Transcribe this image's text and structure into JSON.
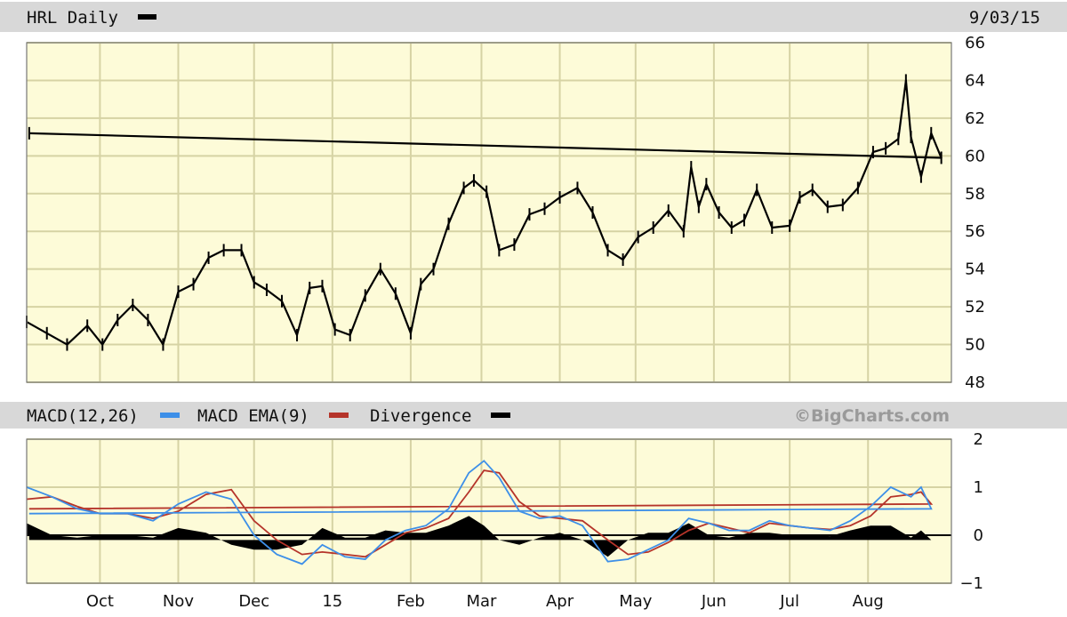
{
  "header": {
    "title": "HRL Daily",
    "date": "9/03/15"
  },
  "macd_header": {
    "macd_label": "MACD(12,26)",
    "ema_label": "MACD EMA(9)",
    "div_label": "Divergence",
    "brand": "©BigCharts.com"
  },
  "colors": {
    "header_bg": "#d8d8d8",
    "plot_bg": "#fdfbd8",
    "grid": "#d6d3a4",
    "price": "#000000",
    "macd": "#3d8fe8",
    "ema": "#b5342a",
    "divergence": "#000000"
  },
  "chart_data": [
    {
      "type": "line",
      "name": "price",
      "title": "HRL Daily",
      "ylim": [
        48,
        66
      ],
      "yticks": [
        "66",
        "64",
        "62",
        "60",
        "58",
        "56",
        "54",
        "52",
        "50",
        "48"
      ],
      "xticks": [
        "Oct",
        "Nov",
        "Dec",
        "15",
        "Feb",
        "Mar",
        "Apr",
        "May",
        "Jun",
        "Jul",
        "Aug"
      ],
      "grid": true,
      "x": [
        "Sep 2",
        "Sep 10",
        "Sep 18",
        "Sep 26",
        "Oct 2",
        "Oct 8",
        "Oct 14",
        "Oct 20",
        "Oct 26",
        "Nov 1",
        "Nov 7",
        "Nov 13",
        "Nov 19",
        "Nov 26",
        "Dec 1",
        "Dec 6",
        "Dec 12",
        "Dec 18",
        "Dec 23",
        "Dec 28",
        "Jan 2",
        "Jan 8",
        "Jan 14",
        "Jan 20",
        "Jan 26",
        "Feb 1",
        "Feb 5",
        "Feb 10",
        "Feb 16",
        "Feb 22",
        "Feb 26",
        "Mar 3",
        "Mar 8",
        "Mar 14",
        "Mar 20",
        "Mar 26",
        "Apr 1",
        "Apr 8",
        "Apr 14",
        "Apr 20",
        "Apr 26",
        "May 2",
        "May 8",
        "May 14",
        "May 20",
        "May 23",
        "May 26",
        "May 29",
        "Jun 3",
        "Jun 8",
        "Jun 13",
        "Jun 18",
        "Jun 24",
        "Jul 1",
        "Jul 5",
        "Jul 10",
        "Jul 16",
        "Jul 22",
        "Jul 28",
        "Aug 3",
        "Aug 8",
        "Aug 13",
        "Aug 16",
        "Aug 18",
        "Aug 22",
        "Aug 26",
        "Aug 30",
        "Sep 3"
      ],
      "values": [
        51.2,
        50.6,
        50.0,
        51.0,
        50.0,
        51.3,
        52.1,
        51.3,
        50.0,
        52.8,
        53.2,
        54.6,
        55.0,
        55.0,
        53.3,
        52.9,
        52.3,
        50.5,
        53.0,
        53.1,
        50.8,
        50.5,
        52.6,
        54.0,
        52.7,
        50.6,
        53.2,
        54.0,
        56.4,
        58.3,
        58.7,
        58.1,
        55.0,
        55.3,
        56.9,
        57.2,
        57.8,
        58.3,
        57.0,
        55.0,
        54.5,
        55.7,
        56.2,
        57.1,
        56.0,
        59.4,
        57.3,
        58.5,
        57.0,
        56.2,
        56.6,
        58.2,
        56.2,
        56.3,
        57.8,
        58.2,
        57.3,
        57.4,
        58.3,
        60.2,
        60.4,
        60.9,
        64.0,
        61.0,
        58.9,
        61.2,
        59.9,
        61.2
      ]
    },
    {
      "type": "line",
      "name": "MACD",
      "ylim": [
        -1,
        2
      ],
      "yticks": [
        "2",
        "1",
        "0",
        "−1"
      ],
      "xticks": [
        "Oct",
        "Nov",
        "Dec",
        "15",
        "Feb",
        "Mar",
        "Apr",
        "May",
        "Jun",
        "Jul",
        "Aug"
      ],
      "grid": true,
      "x": [
        "Sep 2",
        "Sep 12",
        "Sep 22",
        "Oct 1",
        "Oct 12",
        "Oct 22",
        "Nov 1",
        "Nov 12",
        "Nov 22",
        "Dec 1",
        "Dec 10",
        "Dec 20",
        "Dec 28",
        "Jan 6",
        "Jan 14",
        "Jan 22",
        "Jan 30",
        "Feb 7",
        "Feb 16",
        "Feb 24",
        "Mar 2",
        "Mar 8",
        "Mar 16",
        "Mar 24",
        "Apr 1",
        "Apr 10",
        "Apr 20",
        "Apr 28",
        "May 6",
        "May 14",
        "May 22",
        "May 30",
        "Jun 7",
        "Jun 15",
        "Jun 23",
        "Jul 1",
        "Jul 9",
        "Jul 17",
        "Jul 25",
        "Aug 2",
        "Aug 10",
        "Aug 18",
        "Aug 22",
        "Aug 26",
        "Sep 3"
      ],
      "series": [
        {
          "name": "MACD(12,26)",
          "values": [
            1.0,
            0.8,
            0.55,
            0.45,
            0.45,
            0.3,
            0.65,
            0.9,
            0.75,
            0.0,
            -0.4,
            -0.6,
            -0.2,
            -0.45,
            -0.5,
            -0.1,
            0.1,
            0.2,
            0.55,
            1.3,
            1.55,
            1.2,
            0.5,
            0.35,
            0.4,
            0.2,
            -0.55,
            -0.5,
            -0.3,
            -0.1,
            0.35,
            0.25,
            0.1,
            0.1,
            0.3,
            0.2,
            0.15,
            0.1,
            0.3,
            0.6,
            1.0,
            0.8,
            1.0,
            0.55,
            0.45
          ]
        },
        {
          "name": "MACD EMA(9)",
          "values": [
            0.75,
            0.8,
            0.6,
            0.45,
            0.45,
            0.35,
            0.5,
            0.85,
            0.95,
            0.3,
            -0.1,
            -0.4,
            -0.35,
            -0.4,
            -0.45,
            -0.2,
            0.05,
            0.15,
            0.35,
            0.9,
            1.35,
            1.3,
            0.7,
            0.4,
            0.35,
            0.3,
            -0.1,
            -0.4,
            -0.35,
            -0.15,
            0.1,
            0.25,
            0.15,
            0.05,
            0.25,
            0.2,
            0.15,
            0.12,
            0.2,
            0.4,
            0.8,
            0.85,
            0.9,
            0.65,
            0.55
          ]
        },
        {
          "name": "Divergence",
          "values": [
            0.25,
            0.0,
            -0.05,
            0.0,
            0.0,
            -0.05,
            0.15,
            0.05,
            -0.2,
            -0.3,
            -0.3,
            -0.2,
            0.15,
            -0.05,
            -0.05,
            0.1,
            0.05,
            0.05,
            0.2,
            0.4,
            0.2,
            -0.1,
            -0.2,
            -0.05,
            0.05,
            -0.1,
            -0.45,
            -0.1,
            0.05,
            0.05,
            0.25,
            0.0,
            -0.05,
            0.05,
            0.05,
            0.0,
            0.0,
            -0.02,
            0.1,
            0.2,
            0.2,
            -0.05,
            0.1,
            -0.1,
            -0.1
          ]
        }
      ]
    }
  ]
}
